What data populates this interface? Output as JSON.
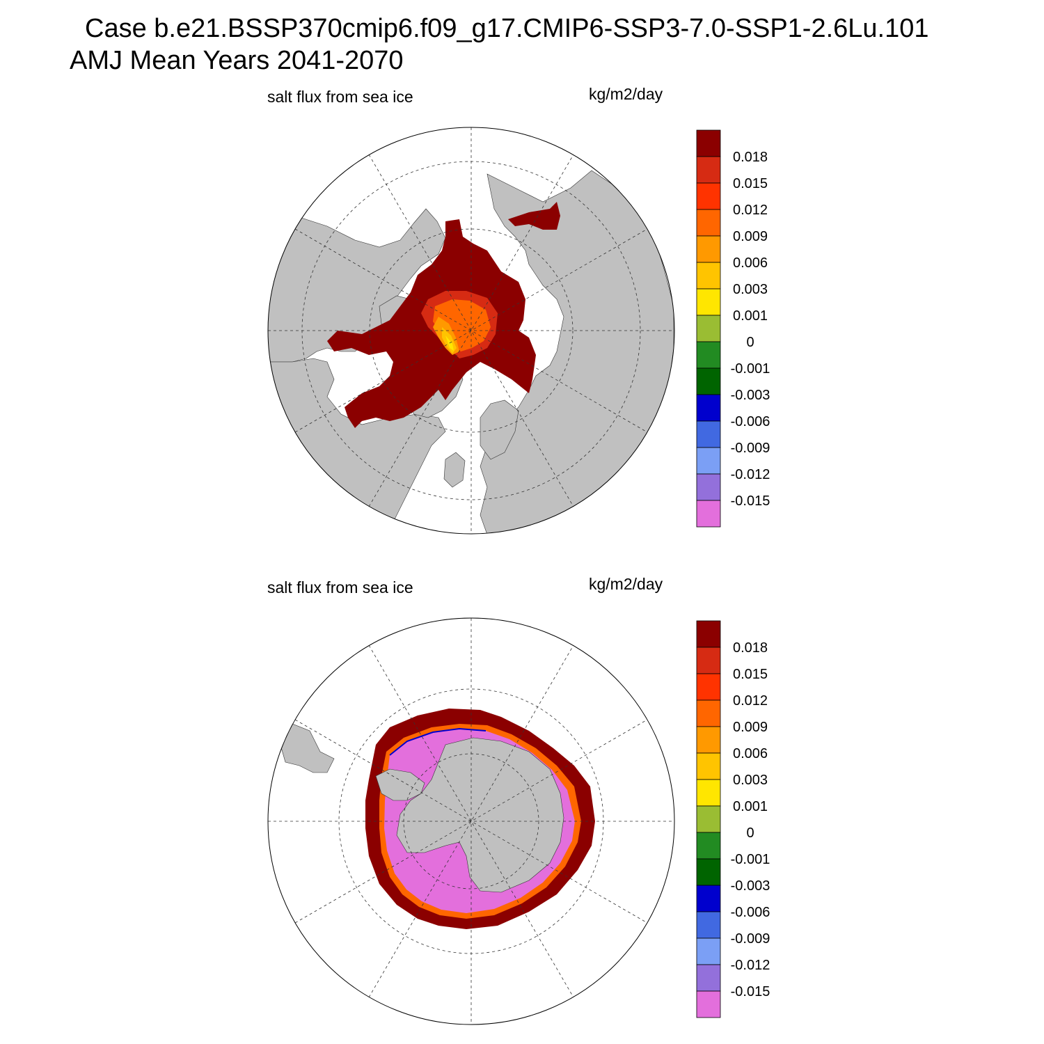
{
  "header": {
    "line1": "Case b.e21.BSSP370cmip6.f09_g17.CMIP6-SSP3-7.0-SSP1-2.6Lu.101",
    "line2": "AMJ Mean   Years 2041-2070"
  },
  "panels": [
    {
      "variable": "salt flux from sea ice",
      "units": "kg/m2/day",
      "hemisphere": "north"
    },
    {
      "variable": "salt flux from sea ice",
      "units": "kg/m2/day",
      "hemisphere": "south"
    }
  ],
  "colorbar": {
    "colors": [
      "#8b0000",
      "#d62b13",
      "#ff3300",
      "#ff6600",
      "#ff9900",
      "#ffc400",
      "#ffe600",
      "#9abd33",
      "#228b22",
      "#006400",
      "#0000cd",
      "#4169e1",
      "#7b9ff5",
      "#9370db",
      "#e36fdc"
    ],
    "labels": [
      "0.018",
      "0.015",
      "0.012",
      "0.009",
      "0.006",
      "0.003",
      "0.001",
      "0",
      "-0.001",
      "-0.003",
      "-0.006",
      "-0.009",
      "-0.012",
      "-0.015"
    ]
  },
  "colors": {
    "land": "#c0c0c0",
    "no_data": "#ffffff",
    "max": "#8b0000",
    "min": "#e36fdc"
  }
}
